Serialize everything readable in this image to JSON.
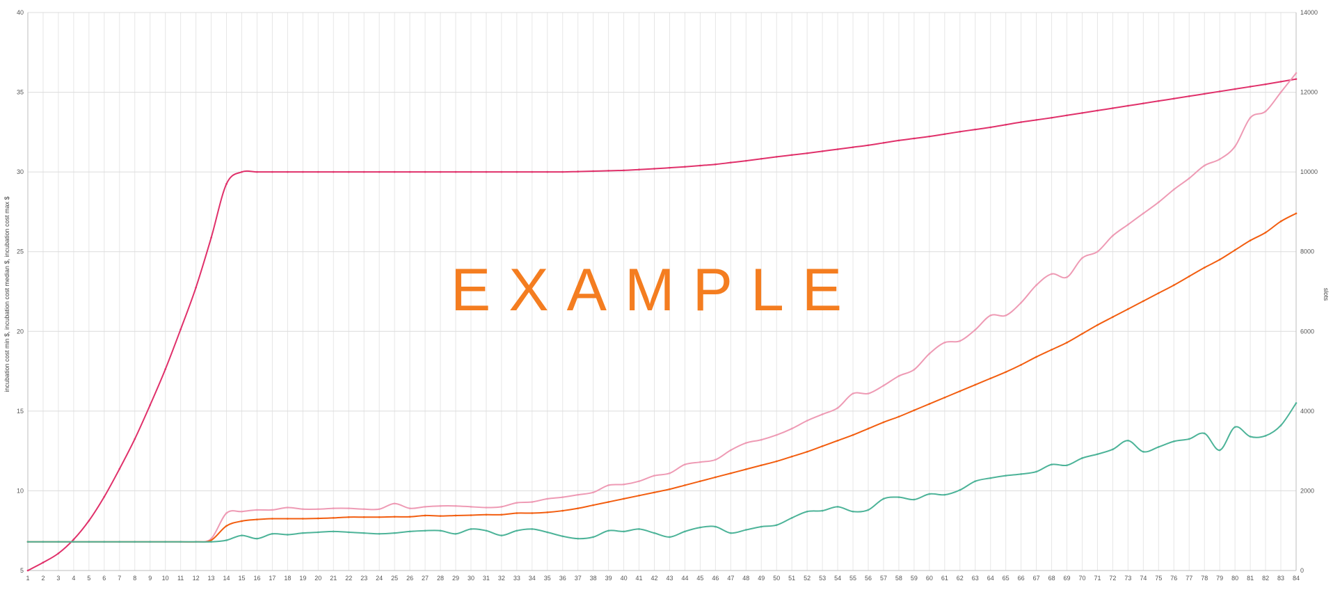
{
  "chart_data": {
    "type": "line",
    "title": "",
    "watermark": "EXAMPLE",
    "ylabel_left": "incubation cost min $, incubation cost median $, incubation cost max $",
    "ylabel_right": "slots",
    "xlim": [
      1,
      84
    ],
    "ylim_left": [
      5,
      40
    ],
    "ylim_right": [
      0,
      14000
    ],
    "yticks_left": [
      5,
      10,
      15,
      20,
      25,
      30,
      35,
      40
    ],
    "yticks_right": [
      0,
      2000,
      4000,
      6000,
      8000,
      10000,
      12000,
      14000
    ],
    "grid": true,
    "legend": "none",
    "series": [
      {
        "axis": "right",
        "color": "#e0306a",
        "keypoints": [
          [
            1,
            0
          ],
          [
            2,
            200
          ],
          [
            3,
            430
          ],
          [
            4,
            780
          ],
          [
            5,
            1250
          ],
          [
            6,
            1850
          ],
          [
            7,
            2550
          ],
          [
            8,
            3300
          ],
          [
            9,
            4150
          ],
          [
            10,
            5050
          ],
          [
            11,
            6050
          ],
          [
            12,
            7100
          ],
          [
            13,
            8350
          ],
          [
            14,
            9700
          ],
          [
            15,
            10000
          ],
          [
            20,
            10000
          ],
          [
            30,
            10000
          ],
          [
            36,
            10000
          ],
          [
            38,
            10020
          ],
          [
            40,
            10040
          ],
          [
            42,
            10080
          ],
          [
            44,
            10130
          ],
          [
            46,
            10190
          ],
          [
            48,
            10280
          ],
          [
            50,
            10380
          ],
          [
            52,
            10470
          ],
          [
            54,
            10570
          ],
          [
            56,
            10670
          ],
          [
            58,
            10790
          ],
          [
            60,
            10890
          ],
          [
            62,
            11010
          ],
          [
            64,
            11120
          ],
          [
            66,
            11250
          ],
          [
            68,
            11360
          ],
          [
            70,
            11480
          ],
          [
            72,
            11600
          ],
          [
            74,
            11720
          ],
          [
            76,
            11840
          ],
          [
            78,
            11960
          ],
          [
            80,
            12080
          ],
          [
            82,
            12200
          ],
          [
            84,
            12330
          ]
        ]
      },
      {
        "axis": "left",
        "color": "#ee9ab4",
        "keypoints": [
          [
            1,
            6.8
          ],
          [
            12,
            6.8
          ],
          [
            13,
            7.0
          ],
          [
            14,
            8.6
          ],
          [
            15,
            8.7
          ],
          [
            16,
            8.8
          ],
          [
            17,
            8.8
          ],
          [
            18,
            8.95
          ],
          [
            19,
            8.85
          ],
          [
            20,
            8.85
          ],
          [
            21,
            8.9
          ],
          [
            22,
            8.9
          ],
          [
            23,
            8.85
          ],
          [
            24,
            8.85
          ],
          [
            25,
            9.2
          ],
          [
            26,
            8.9
          ],
          [
            27,
            9.0
          ],
          [
            28,
            9.05
          ],
          [
            29,
            9.05
          ],
          [
            30,
            9.0
          ],
          [
            31,
            8.95
          ],
          [
            32,
            9.0
          ],
          [
            33,
            9.25
          ],
          [
            34,
            9.3
          ],
          [
            35,
            9.5
          ],
          [
            36,
            9.6
          ],
          [
            37,
            9.75
          ],
          [
            38,
            9.9
          ],
          [
            39,
            10.35
          ],
          [
            40,
            10.4
          ],
          [
            41,
            10.6
          ],
          [
            42,
            10.95
          ],
          [
            43,
            11.1
          ],
          [
            44,
            11.65
          ],
          [
            45,
            11.8
          ],
          [
            46,
            11.95
          ],
          [
            47,
            12.55
          ],
          [
            48,
            13.0
          ],
          [
            49,
            13.2
          ],
          [
            50,
            13.5
          ],
          [
            51,
            13.9
          ],
          [
            52,
            14.4
          ],
          [
            53,
            14.8
          ],
          [
            54,
            15.2
          ],
          [
            55,
            16.1
          ],
          [
            56,
            16.1
          ],
          [
            57,
            16.6
          ],
          [
            58,
            17.2
          ],
          [
            59,
            17.6
          ],
          [
            60,
            18.6
          ],
          [
            61,
            19.3
          ],
          [
            62,
            19.4
          ],
          [
            63,
            20.1
          ],
          [
            64,
            21.0
          ],
          [
            65,
            21.0
          ],
          [
            66,
            21.8
          ],
          [
            67,
            22.9
          ],
          [
            68,
            23.6
          ],
          [
            69,
            23.4
          ],
          [
            70,
            24.6
          ],
          [
            71,
            25.0
          ],
          [
            72,
            26.0
          ],
          [
            73,
            26.7
          ],
          [
            74,
            27.4
          ],
          [
            75,
            28.1
          ],
          [
            76,
            28.9
          ],
          [
            77,
            29.6
          ],
          [
            78,
            30.4
          ],
          [
            79,
            30.8
          ],
          [
            80,
            31.6
          ],
          [
            81,
            33.4
          ],
          [
            82,
            33.8
          ],
          [
            83,
            35.0
          ],
          [
            84,
            36.2
          ]
        ]
      },
      {
        "axis": "left",
        "color": "#f25d0f",
        "keypoints": [
          [
            1,
            6.8
          ],
          [
            12,
            6.8
          ],
          [
            13,
            6.9
          ],
          [
            14,
            7.8
          ],
          [
            15,
            8.1
          ],
          [
            16,
            8.2
          ],
          [
            17,
            8.25
          ],
          [
            18,
            8.25
          ],
          [
            19,
            8.25
          ],
          [
            20,
            8.27
          ],
          [
            21,
            8.3
          ],
          [
            22,
            8.35
          ],
          [
            23,
            8.35
          ],
          [
            24,
            8.35
          ],
          [
            25,
            8.37
          ],
          [
            26,
            8.37
          ],
          [
            27,
            8.45
          ],
          [
            28,
            8.42
          ],
          [
            29,
            8.45
          ],
          [
            30,
            8.47
          ],
          [
            31,
            8.5
          ],
          [
            32,
            8.5
          ],
          [
            33,
            8.6
          ],
          [
            34,
            8.6
          ],
          [
            35,
            8.65
          ],
          [
            36,
            8.75
          ],
          [
            37,
            8.9
          ],
          [
            38,
            9.1
          ],
          [
            39,
            9.3
          ],
          [
            40,
            9.5
          ],
          [
            41,
            9.7
          ],
          [
            42,
            9.9
          ],
          [
            43,
            10.1
          ],
          [
            44,
            10.35
          ],
          [
            45,
            10.6
          ],
          [
            46,
            10.85
          ],
          [
            47,
            11.1
          ],
          [
            48,
            11.35
          ],
          [
            49,
            11.6
          ],
          [
            50,
            11.85
          ],
          [
            51,
            12.15
          ],
          [
            52,
            12.45
          ],
          [
            53,
            12.8
          ],
          [
            54,
            13.15
          ],
          [
            55,
            13.5
          ],
          [
            56,
            13.9
          ],
          [
            57,
            14.3
          ],
          [
            58,
            14.65
          ],
          [
            59,
            15.05
          ],
          [
            60,
            15.45
          ],
          [
            61,
            15.85
          ],
          [
            62,
            16.25
          ],
          [
            63,
            16.65
          ],
          [
            64,
            17.05
          ],
          [
            65,
            17.45
          ],
          [
            66,
            17.9
          ],
          [
            67,
            18.4
          ],
          [
            68,
            18.85
          ],
          [
            69,
            19.3
          ],
          [
            70,
            19.85
          ],
          [
            71,
            20.4
          ],
          [
            72,
            20.9
          ],
          [
            73,
            21.4
          ],
          [
            74,
            21.9
          ],
          [
            75,
            22.4
          ],
          [
            76,
            22.9
          ],
          [
            77,
            23.45
          ],
          [
            78,
            24.0
          ],
          [
            79,
            24.5
          ],
          [
            80,
            25.1
          ],
          [
            81,
            25.7
          ],
          [
            82,
            26.2
          ],
          [
            83,
            26.9
          ],
          [
            84,
            27.4
          ]
        ]
      },
      {
        "axis": "left",
        "color": "#4cb398",
        "keypoints": [
          [
            1,
            6.8
          ],
          [
            12,
            6.8
          ],
          [
            13,
            6.8
          ],
          [
            14,
            6.9
          ],
          [
            15,
            7.2
          ],
          [
            16,
            7.0
          ],
          [
            17,
            7.3
          ],
          [
            18,
            7.25
          ],
          [
            19,
            7.35
          ],
          [
            20,
            7.4
          ],
          [
            21,
            7.45
          ],
          [
            22,
            7.4
          ],
          [
            23,
            7.35
          ],
          [
            24,
            7.3
          ],
          [
            25,
            7.35
          ],
          [
            26,
            7.45
          ],
          [
            27,
            7.5
          ],
          [
            28,
            7.5
          ],
          [
            29,
            7.3
          ],
          [
            30,
            7.6
          ],
          [
            31,
            7.5
          ],
          [
            32,
            7.2
          ],
          [
            33,
            7.5
          ],
          [
            34,
            7.6
          ],
          [
            35,
            7.4
          ],
          [
            36,
            7.15
          ],
          [
            37,
            7.0
          ],
          [
            38,
            7.1
          ],
          [
            39,
            7.5
          ],
          [
            40,
            7.45
          ],
          [
            41,
            7.6
          ],
          [
            42,
            7.35
          ],
          [
            43,
            7.1
          ],
          [
            44,
            7.45
          ],
          [
            45,
            7.7
          ],
          [
            46,
            7.75
          ],
          [
            47,
            7.35
          ],
          [
            48,
            7.55
          ],
          [
            49,
            7.75
          ],
          [
            50,
            7.85
          ],
          [
            51,
            8.3
          ],
          [
            52,
            8.7
          ],
          [
            53,
            8.75
          ],
          [
            54,
            9.0
          ],
          [
            55,
            8.7
          ],
          [
            56,
            8.8
          ],
          [
            57,
            9.5
          ],
          [
            58,
            9.6
          ],
          [
            59,
            9.45
          ],
          [
            60,
            9.8
          ],
          [
            61,
            9.75
          ],
          [
            62,
            10.05
          ],
          [
            63,
            10.6
          ],
          [
            64,
            10.8
          ],
          [
            65,
            10.95
          ],
          [
            66,
            11.05
          ],
          [
            67,
            11.2
          ],
          [
            68,
            11.65
          ],
          [
            69,
            11.6
          ],
          [
            70,
            12.05
          ],
          [
            71,
            12.3
          ],
          [
            72,
            12.6
          ],
          [
            73,
            13.15
          ],
          [
            74,
            12.45
          ],
          [
            75,
            12.75
          ],
          [
            76,
            13.1
          ],
          [
            77,
            13.25
          ],
          [
            78,
            13.6
          ],
          [
            79,
            12.55
          ],
          [
            80,
            14.0
          ],
          [
            81,
            13.4
          ],
          [
            82,
            13.45
          ],
          [
            83,
            14.1
          ],
          [
            84,
            15.5
          ]
        ]
      }
    ]
  }
}
